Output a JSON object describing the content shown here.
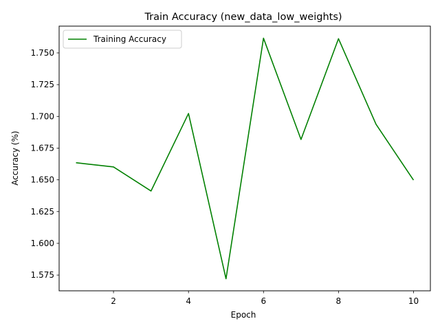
{
  "chart_data": {
    "type": "line",
    "title": "Train Accuracy (new_data_low_weights)",
    "xlabel": "Epoch",
    "ylabel": "Accuracy (%)",
    "x": [
      1,
      2,
      3,
      4,
      5,
      6,
      7,
      8,
      9,
      10
    ],
    "series": [
      {
        "name": "Training Accuracy",
        "color": "#008000",
        "values": [
          1.6635,
          1.6602,
          1.6412,
          1.7023,
          1.5721,
          1.7616,
          1.6818,
          1.7612,
          1.6938,
          1.6498
        ]
      }
    ],
    "xlim": [
      0.55,
      10.45
    ],
    "ylim": [
      1.5626,
      1.7711
    ],
    "xticks": [
      2,
      4,
      6,
      8,
      10
    ],
    "xtick_labels": [
      "2",
      "4",
      "6",
      "8",
      "10"
    ],
    "yticks": [
      1.575,
      1.6,
      1.625,
      1.65,
      1.675,
      1.7,
      1.725,
      1.75
    ],
    "ytick_labels": [
      "1.575",
      "1.600",
      "1.625",
      "1.650",
      "1.675",
      "1.700",
      "1.725",
      "1.750"
    ],
    "legend_position": "upper-left",
    "grid": false
  }
}
